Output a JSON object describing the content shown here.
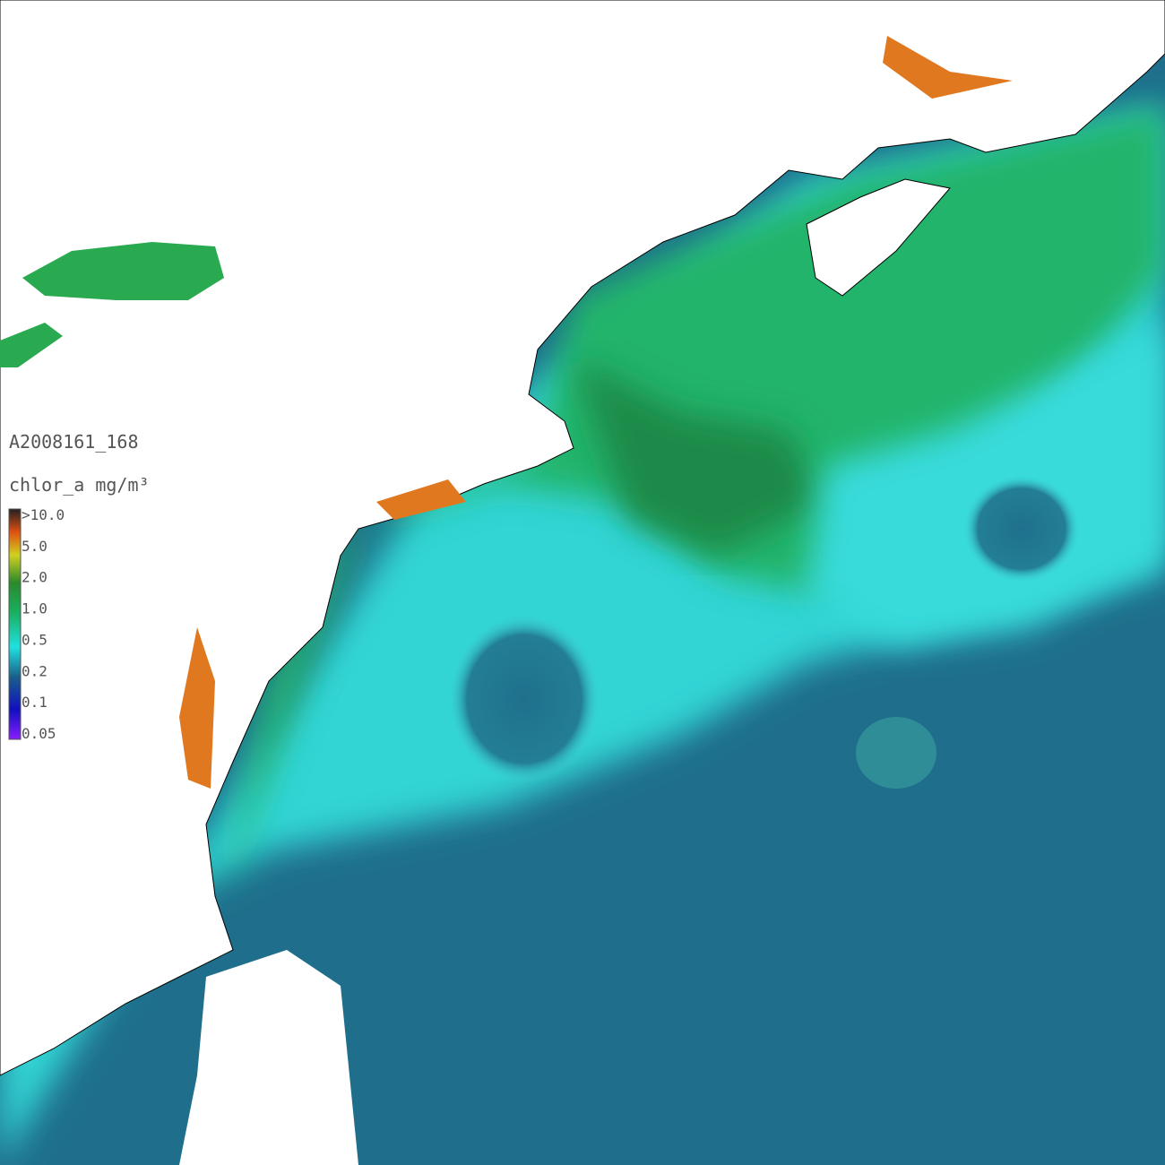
{
  "product_id": "A2008161_168",
  "legend": {
    "title": "chlor_a mg/m³",
    "labels": [
      ">10.0",
      "5.0",
      "2.0",
      "1.0",
      "0.5",
      "0.2",
      "0.1",
      "0.05"
    ]
  }
}
